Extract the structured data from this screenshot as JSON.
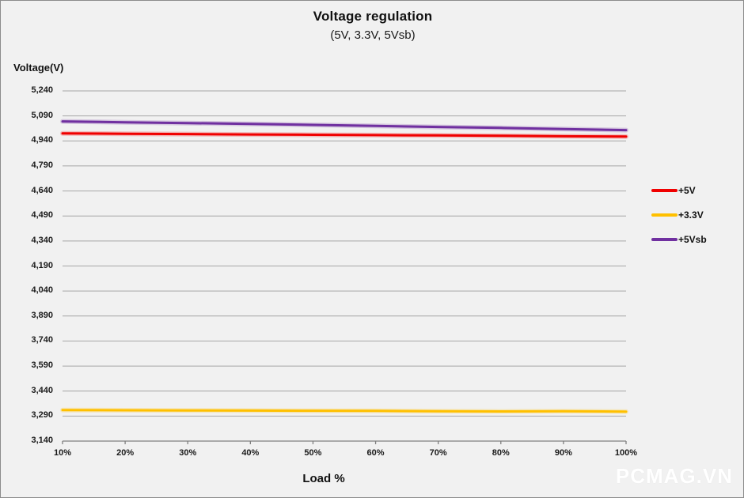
{
  "frame": {
    "background": "#f1f1f1",
    "border_color": "#8c8c8c"
  },
  "chart_data": {
    "type": "line",
    "title": "Voltage regulation",
    "subtitle": "(5V, 3.3V, 5Vsb)",
    "ylabel": "Voltage(V)",
    "xlabel": "Load %",
    "x": [
      10,
      20,
      30,
      40,
      50,
      60,
      70,
      80,
      90,
      100
    ],
    "x_tick_labels": [
      "10%",
      "20%",
      "30%",
      "40%",
      "50%",
      "60%",
      "70%",
      "80%",
      "90%",
      "100%"
    ],
    "ylim": [
      3140,
      5240
    ],
    "y_tick_step": 150,
    "y_ticks": [
      3140,
      3290,
      3440,
      3590,
      3740,
      3890,
      4040,
      4190,
      4340,
      4490,
      4640,
      4790,
      4940,
      5090,
      5240
    ],
    "y_tick_labels": [
      "3,140",
      "3,290",
      "3,440",
      "3,590",
      "3,740",
      "3,890",
      "4,040",
      "4,190",
      "4,340",
      "4,490",
      "4,640",
      "4,790",
      "4,940",
      "5,090",
      "5,240"
    ],
    "grid": "horizontal",
    "gridline_color": "#a6a6a6",
    "axis_color": "#7f7f7f",
    "legend_position": "right",
    "series": [
      {
        "name": "+5V",
        "color": "#f00000",
        "values": [
          4985,
          4983,
          4981,
          4979,
          4977,
          4975,
          4973,
          4971,
          4968,
          4966
        ]
      },
      {
        "name": "+3.3V",
        "color": "#ffc000",
        "values": [
          3326,
          3325,
          3324,
          3323,
          3322,
          3321,
          3319,
          3318,
          3319,
          3317
        ]
      },
      {
        "name": "+5Vsb",
        "color": "#7030a0",
        "values": [
          5057,
          5052,
          5047,
          5042,
          5036,
          5030,
          5024,
          5018,
          5011,
          5005
        ]
      }
    ]
  },
  "watermark": {
    "text": "PCMAG.VN",
    "color": "#ffffff"
  }
}
